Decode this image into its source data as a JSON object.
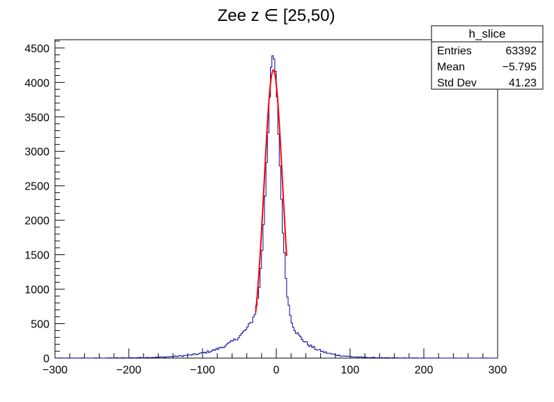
{
  "chart_data": {
    "type": "histogram",
    "title": "Zee z ∈ [25,50)",
    "xlabel": "",
    "ylabel": "",
    "xlim": [
      -300,
      300
    ],
    "ylim": [
      0,
      4620
    ],
    "x_ticks": [
      -300,
      -200,
      -100,
      0,
      100,
      200,
      300
    ],
    "y_ticks": [
      0,
      500,
      1000,
      1500,
      2000,
      2500,
      3000,
      3500,
      4000,
      4500
    ],
    "grid": false,
    "histogram": {
      "name": "h_slice",
      "color": "#000099",
      "bin_width": 2,
      "peak_x": -4,
      "peak_value": 4400,
      "shape": "gaussian core (sigma ~9) plus exponential tails",
      "core_fraction": 0.72,
      "core_sigma": 9,
      "tail_scale_left": 34,
      "tail_scale_right": 26
    },
    "fit": {
      "type": "gaussian",
      "color": "#ff0000",
      "range": [
        -28,
        14
      ],
      "peak": 4180,
      "mean": -4,
      "sigma": 12.5
    }
  },
  "stats_box": {
    "name": "h_slice",
    "rows": [
      {
        "label": "Entries",
        "value": "63392"
      },
      {
        "label": "Mean",
        "value": "−5.795"
      },
      {
        "label": "Std Dev",
        "value": "41.23"
      }
    ]
  }
}
